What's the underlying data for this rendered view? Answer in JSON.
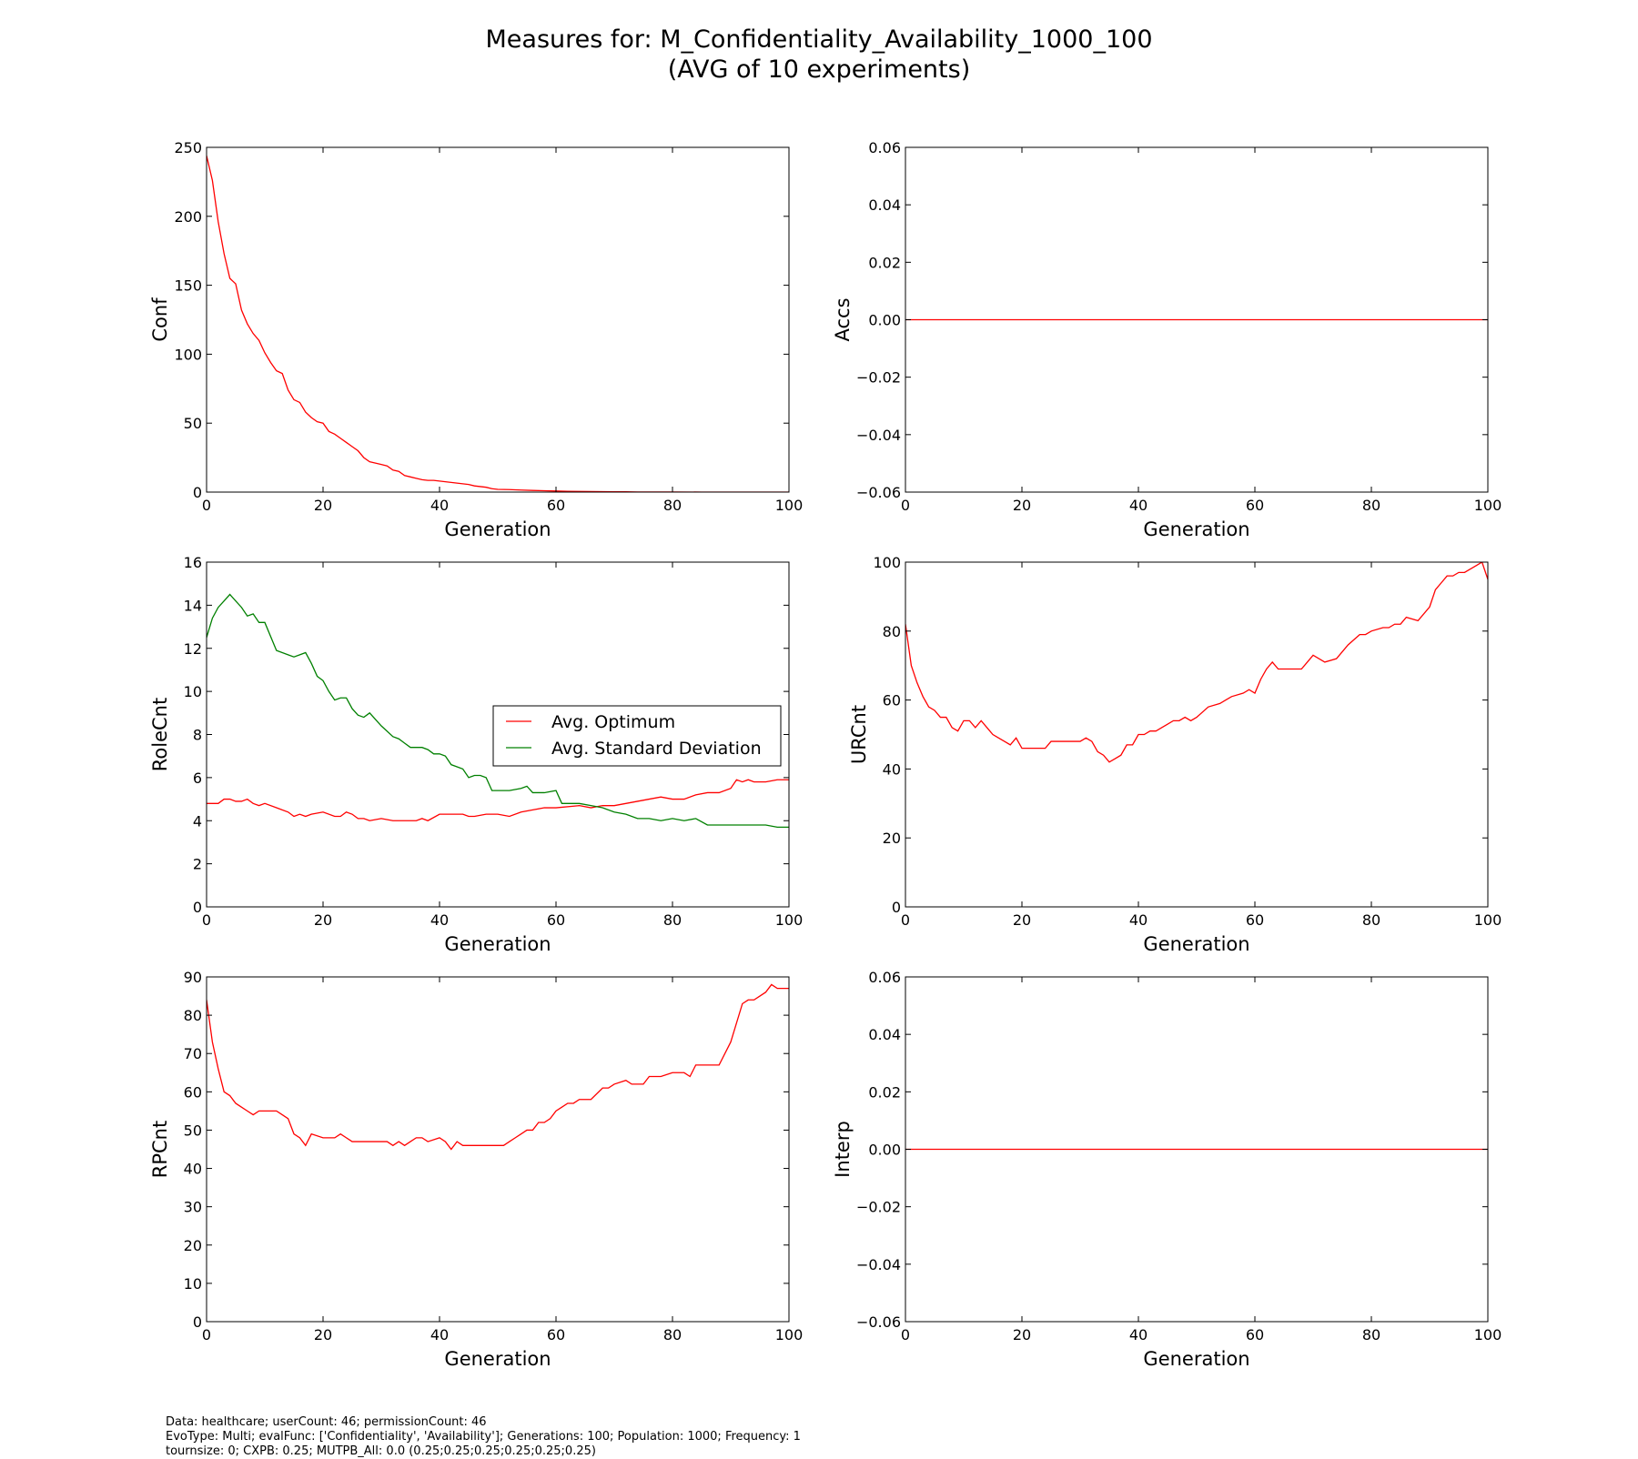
{
  "figure": {
    "title": "Measures for: M_Confidentiality_Availability_1000_100",
    "subtitle": "(AVG of 10 experiments)",
    "footer": [
      "Data: healthcare; userCount: 46; permissionCount: 46",
      "EvoType: Multi; evalFunc: ['Confidentiality', 'Availability']; Generations: 100; Population: 1000; Frequency: 1",
      "tournsize: 0; CXPB: 0.25; MUTPB_All: 0.0 (0.25;0.25;0.25;0.25;0.25;0.25)"
    ]
  },
  "chart_data": [
    {
      "id": "conf",
      "type": "line",
      "xlabel": "Generation",
      "ylabel": "Conf",
      "xlim": [
        0,
        100
      ],
      "ylim": [
        0,
        250
      ],
      "xticks": [
        "0",
        "20",
        "40",
        "60",
        "80",
        "100"
      ],
      "yticks": [
        "0",
        "50",
        "100",
        "150",
        "200",
        "250"
      ],
      "legend": null,
      "grid": false,
      "series": [
        {
          "color": "#ff0000",
          "x": [
            0,
            1,
            2,
            3,
            4,
            5,
            6,
            7,
            8,
            9,
            10,
            11,
            12,
            13,
            14,
            15,
            16,
            17,
            18,
            19,
            20,
            21,
            22,
            23,
            24,
            25,
            26,
            27,
            28,
            29,
            30,
            31,
            32,
            33,
            34,
            35,
            36,
            37,
            38,
            39,
            40,
            41,
            42,
            43,
            44,
            45,
            46,
            47,
            48,
            49,
            50,
            52,
            54,
            56,
            58,
            60,
            62,
            64,
            66,
            68,
            70,
            72,
            74,
            76,
            78,
            80,
            85,
            90,
            95,
            100
          ],
          "y": [
            244,
            226,
            196,
            173,
            155,
            151,
            132,
            122,
            115,
            110,
            101,
            94,
            88,
            86,
            74,
            67,
            65,
            58,
            54,
            51,
            50,
            44,
            42,
            39,
            36,
            33,
            30,
            25,
            22,
            21,
            20,
            19,
            16,
            15,
            12,
            11,
            10,
            9,
            8.5,
            8.5,
            8,
            7.5,
            7,
            6.5,
            6,
            5.5,
            4.5,
            4,
            3.5,
            2.5,
            2,
            1.8,
            1.5,
            1.2,
            1,
            0.8,
            0.6,
            0.5,
            0.4,
            0.3,
            0.2,
            0.2,
            0.1,
            0.1,
            0.1,
            0.1,
            0,
            0,
            0,
            0
          ]
        }
      ]
    },
    {
      "id": "accs",
      "type": "line",
      "xlabel": "Generation",
      "ylabel": "Accs",
      "xlim": [
        0,
        100
      ],
      "ylim": [
        -0.06,
        0.06
      ],
      "xticks": [
        "0",
        "20",
        "40",
        "60",
        "80",
        "100"
      ],
      "yticks": [
        "−0.06",
        "−0.04",
        "−0.02",
        "0.00",
        "0.02",
        "0.04",
        "0.06"
      ],
      "legend": null,
      "grid": false,
      "series": [
        {
          "color": "#ff0000",
          "x": [
            0,
            100
          ],
          "y": [
            0,
            0
          ]
        }
      ]
    },
    {
      "id": "rolecnt",
      "type": "line",
      "xlabel": "Generation",
      "ylabel": "RoleCnt",
      "xlim": [
        0,
        100
      ],
      "ylim": [
        0,
        16
      ],
      "xticks": [
        "0",
        "20",
        "40",
        "60",
        "80",
        "100"
      ],
      "yticks": [
        "0",
        "2",
        "4",
        "6",
        "8",
        "10",
        "12",
        "14",
        "16"
      ],
      "legend": "center-right",
      "grid": false,
      "series": [
        {
          "name": "Avg. Optimum",
          "color": "#ff0000",
          "x": [
            0,
            2,
            3,
            4,
            5,
            6,
            7,
            8,
            9,
            10,
            12,
            14,
            15,
            16,
            17,
            18,
            20,
            22,
            23,
            24,
            25,
            26,
            27,
            28,
            30,
            32,
            34,
            36,
            37,
            38,
            40,
            44,
            45,
            46,
            48,
            50,
            52,
            54,
            56,
            58,
            60,
            64,
            66,
            68,
            70,
            72,
            74,
            76,
            78,
            80,
            82,
            84,
            86,
            88,
            90,
            91,
            92,
            93,
            94,
            96,
            98,
            100
          ],
          "y": [
            4.8,
            4.8,
            5.0,
            5.0,
            4.9,
            4.9,
            5.0,
            4.8,
            4.7,
            4.8,
            4.6,
            4.4,
            4.2,
            4.3,
            4.2,
            4.3,
            4.4,
            4.2,
            4.2,
            4.4,
            4.3,
            4.1,
            4.1,
            4.0,
            4.1,
            4.0,
            4.0,
            4.0,
            4.1,
            4.0,
            4.3,
            4.3,
            4.2,
            4.2,
            4.3,
            4.3,
            4.2,
            4.4,
            4.5,
            4.6,
            4.6,
            4.7,
            4.6,
            4.7,
            4.7,
            4.8,
            4.9,
            5.0,
            5.1,
            5.0,
            5.0,
            5.2,
            5.3,
            5.3,
            5.5,
            5.9,
            5.8,
            5.9,
            5.8,
            5.8,
            5.9,
            5.9
          ]
        },
        {
          "name": "Avg. Standard Deviation",
          "color": "#008000",
          "x": [
            0,
            1,
            2,
            3,
            4,
            5,
            6,
            7,
            8,
            9,
            10,
            12,
            14,
            15,
            16,
            17,
            18,
            19,
            20,
            21,
            22,
            23,
            24,
            25,
            26,
            27,
            28,
            30,
            32,
            33,
            34,
            35,
            36,
            37,
            38,
            39,
            40,
            41,
            42,
            43,
            44,
            45,
            46,
            47,
            48,
            49,
            50,
            52,
            54,
            55,
            56,
            58,
            60,
            61,
            62,
            64,
            66,
            68,
            70,
            72,
            74,
            76,
            78,
            80,
            82,
            84,
            86,
            88,
            90,
            92,
            94,
            96,
            98,
            100
          ],
          "y": [
            12.5,
            13.4,
            13.9,
            14.2,
            14.5,
            14.2,
            13.9,
            13.5,
            13.6,
            13.2,
            13.2,
            11.9,
            11.7,
            11.6,
            11.7,
            11.8,
            11.3,
            10.7,
            10.5,
            10.0,
            9.6,
            9.7,
            9.7,
            9.2,
            8.9,
            8.8,
            9.0,
            8.4,
            7.9,
            7.8,
            7.6,
            7.4,
            7.4,
            7.4,
            7.3,
            7.1,
            7.1,
            7.0,
            6.6,
            6.5,
            6.4,
            6.0,
            6.1,
            6.1,
            6.0,
            5.4,
            5.4,
            5.4,
            5.5,
            5.6,
            5.3,
            5.3,
            5.4,
            4.8,
            4.8,
            4.8,
            4.7,
            4.6,
            4.4,
            4.3,
            4.1,
            4.1,
            4.0,
            4.1,
            4.0,
            4.1,
            3.8,
            3.8,
            3.8,
            3.8,
            3.8,
            3.8,
            3.7,
            3.7
          ]
        }
      ]
    },
    {
      "id": "urcnt",
      "type": "line",
      "xlabel": "Generation",
      "ylabel": "URCnt",
      "xlim": [
        0,
        100
      ],
      "ylim": [
        0,
        100
      ],
      "xticks": [
        "0",
        "20",
        "40",
        "60",
        "80",
        "100"
      ],
      "yticks": [
        "0",
        "20",
        "40",
        "60",
        "80",
        "100"
      ],
      "legend": null,
      "grid": false,
      "series": [
        {
          "color": "#ff0000",
          "x": [
            0,
            1,
            2,
            3,
            4,
            5,
            6,
            7,
            8,
            9,
            10,
            11,
            12,
            13,
            14,
            15,
            16,
            17,
            18,
            19,
            20,
            22,
            24,
            25,
            26,
            28,
            30,
            31,
            32,
            33,
            34,
            35,
            36,
            37,
            38,
            39,
            40,
            41,
            42,
            43,
            44,
            45,
            46,
            47,
            48,
            49,
            50,
            52,
            54,
            55,
            56,
            58,
            59,
            60,
            61,
            62,
            63,
            64,
            66,
            68,
            69,
            70,
            72,
            74,
            75,
            76,
            78,
            79,
            80,
            82,
            83,
            84,
            85,
            86,
            88,
            90,
            91,
            92,
            93,
            94,
            95,
            96,
            97,
            98,
            99,
            100
          ],
          "y": [
            82,
            70,
            65,
            61,
            58,
            57,
            55,
            55,
            52,
            51,
            54,
            54,
            52,
            54,
            52,
            50,
            49,
            48,
            47,
            49,
            46,
            46,
            46,
            48,
            48,
            48,
            48,
            49,
            48,
            45,
            44,
            42,
            43,
            44,
            47,
            47,
            50,
            50,
            51,
            51,
            52,
            53,
            54,
            54,
            55,
            54,
            55,
            58,
            59,
            60,
            61,
            62,
            63,
            62,
            66,
            69,
            71,
            69,
            69,
            69,
            71,
            73,
            71,
            72,
            74,
            76,
            79,
            79,
            80,
            81,
            81,
            82,
            82,
            84,
            83,
            87,
            92,
            94,
            96,
            96,
            97,
            97,
            98,
            99,
            100,
            95
          ]
        }
      ]
    },
    {
      "id": "rpcnt",
      "type": "line",
      "xlabel": "Generation",
      "ylabel": "RPCnt",
      "xlim": [
        0,
        100
      ],
      "ylim": [
        0,
        90
      ],
      "xticks": [
        "0",
        "20",
        "40",
        "60",
        "80",
        "100"
      ],
      "yticks": [
        "0",
        "10",
        "20",
        "30",
        "40",
        "50",
        "60",
        "70",
        "80",
        "90"
      ],
      "legend": null,
      "grid": false,
      "series": [
        {
          "color": "#ff0000",
          "x": [
            0,
            1,
            2,
            3,
            4,
            5,
            6,
            7,
            8,
            9,
            10,
            12,
            13,
            14,
            15,
            16,
            17,
            18,
            20,
            21,
            22,
            23,
            24,
            25,
            26,
            28,
            30,
            31,
            32,
            33,
            34,
            35,
            36,
            37,
            38,
            40,
            41,
            42,
            43,
            44,
            45,
            46,
            47,
            48,
            50,
            51,
            52,
            53,
            54,
            55,
            56,
            57,
            58,
            59,
            60,
            61,
            62,
            63,
            64,
            65,
            66,
            68,
            69,
            70,
            72,
            73,
            74,
            75,
            76,
            78,
            80,
            82,
            83,
            84,
            85,
            86,
            88,
            90,
            91,
            92,
            93,
            94,
            95,
            96,
            97,
            98,
            100
          ],
          "y": [
            84,
            73,
            66,
            60,
            59,
            57,
            56,
            55,
            54,
            55,
            55,
            55,
            54,
            53,
            49,
            48,
            46,
            49,
            48,
            48,
            48,
            49,
            48,
            47,
            47,
            47,
            47,
            47,
            46,
            47,
            46,
            47,
            48,
            48,
            47,
            48,
            47,
            45,
            47,
            46,
            46,
            46,
            46,
            46,
            46,
            46,
            47,
            48,
            49,
            50,
            50,
            52,
            52,
            53,
            55,
            56,
            57,
            57,
            58,
            58,
            58,
            61,
            61,
            62,
            63,
            62,
            62,
            62,
            64,
            64,
            65,
            65,
            64,
            67,
            67,
            67,
            67,
            73,
            78,
            83,
            84,
            84,
            85,
            86,
            88,
            87,
            87
          ]
        }
      ]
    },
    {
      "id": "interp",
      "type": "line",
      "xlabel": "Generation",
      "ylabel": "Interp",
      "xlim": [
        0,
        100
      ],
      "ylim": [
        -0.06,
        0.06
      ],
      "xticks": [
        "0",
        "20",
        "40",
        "60",
        "80",
        "100"
      ],
      "yticks": [
        "−0.06",
        "−0.04",
        "−0.02",
        "0.00",
        "0.02",
        "0.04",
        "0.06"
      ],
      "legend": null,
      "grid": false,
      "series": [
        {
          "color": "#ff0000",
          "x": [
            0,
            100
          ],
          "y": [
            0,
            0
          ]
        }
      ]
    }
  ]
}
